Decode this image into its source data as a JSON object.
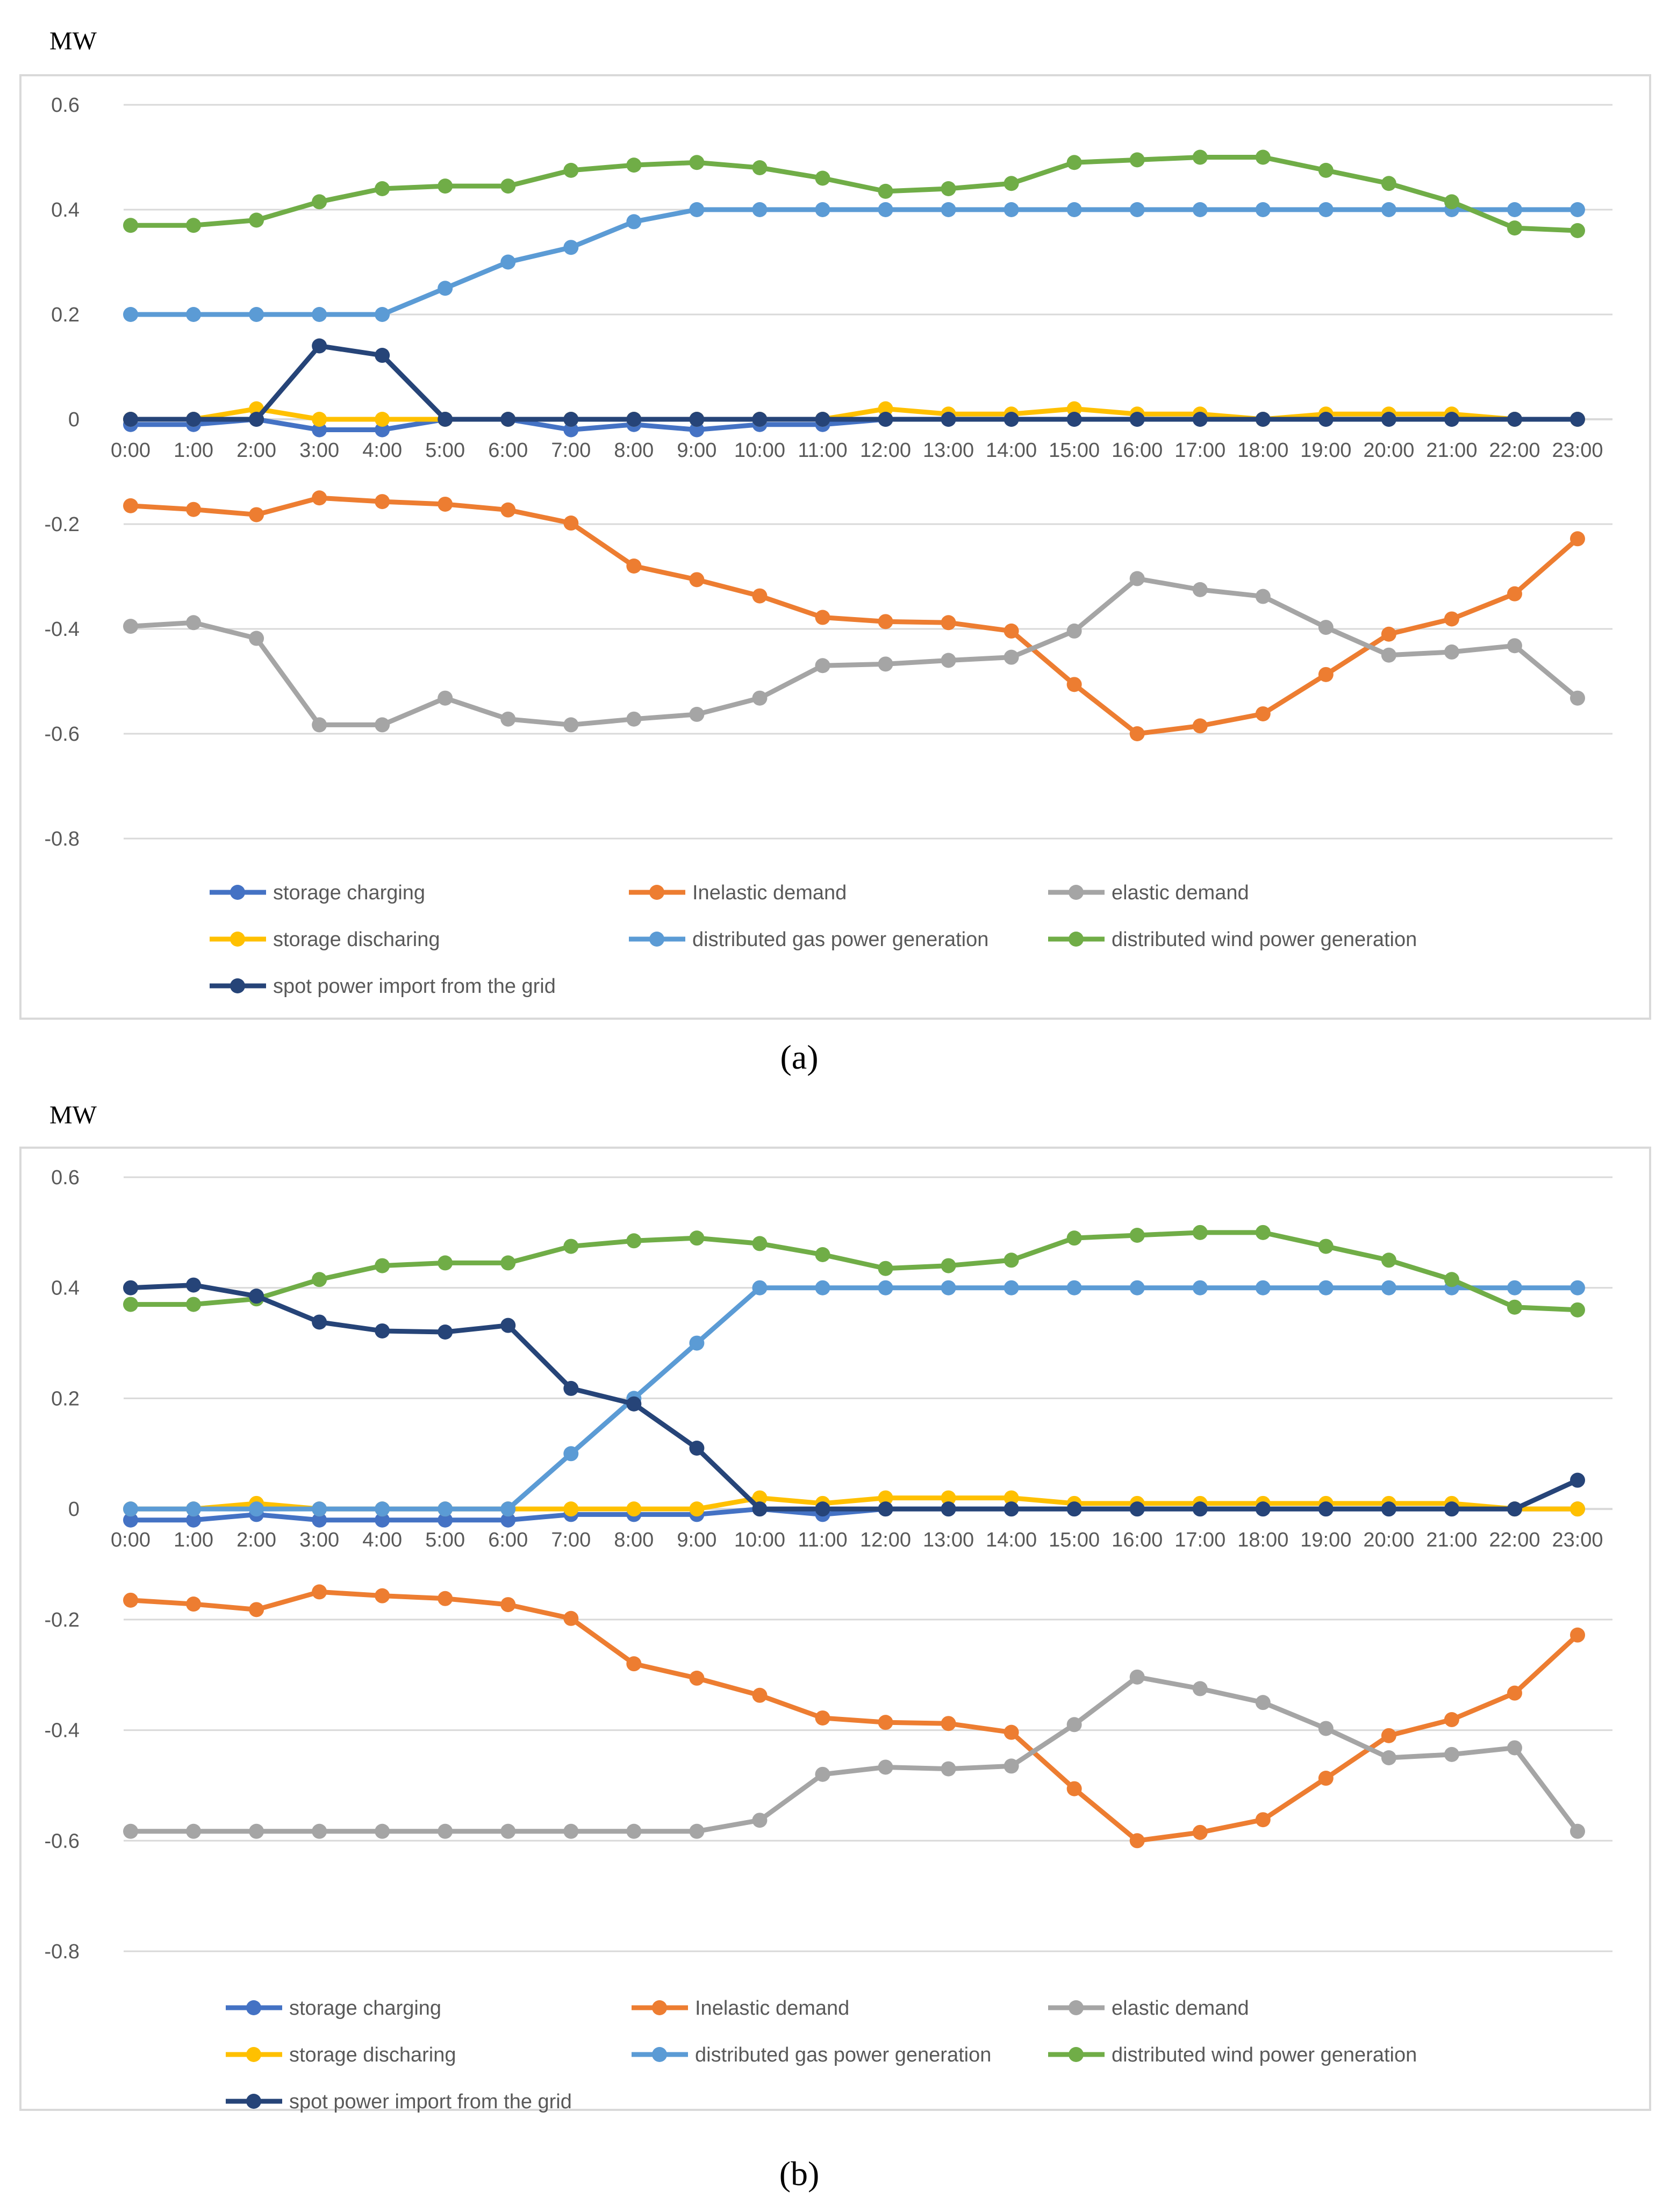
{
  "chart_data": [
    {
      "type": "line",
      "caption": "(a)",
      "ylabel": "MW",
      "ylim": [
        -0.8,
        0.6
      ],
      "yticks": [
        0.6,
        0.4,
        0.2,
        0,
        -0.2,
        -0.4,
        -0.6,
        -0.8
      ],
      "grid": true,
      "categories": [
        "0:00",
        "1:00",
        "2:00",
        "3:00",
        "4:00",
        "5:00",
        "6:00",
        "7:00",
        "8:00",
        "9:00",
        "10:00",
        "11:00",
        "12:00",
        "13:00",
        "14:00",
        "15:00",
        "16:00",
        "17:00",
        "18:00",
        "19:00",
        "20:00",
        "21:00",
        "22:00",
        "23:00"
      ],
      "series": [
        {
          "name": "storage charging",
          "color": "#4472C4",
          "values": [
            -0.01,
            -0.01,
            0,
            -0.02,
            -0.02,
            0,
            0,
            -0.02,
            -0.01,
            -0.02,
            -0.01,
            -0.01,
            0,
            0,
            0,
            0,
            0,
            0,
            0,
            0,
            0,
            0,
            0,
            0
          ]
        },
        {
          "name": "Inelastic demand",
          "color": "#ED7D31",
          "values": [
            -0.165,
            -0.172,
            -0.182,
            -0.15,
            -0.157,
            -0.162,
            -0.173,
            -0.198,
            -0.28,
            -0.306,
            -0.337,
            -0.378,
            -0.386,
            -0.388,
            -0.404,
            -0.506,
            -0.6,
            -0.585,
            -0.562,
            -0.487,
            -0.41,
            -0.381,
            -0.333,
            -0.228
          ]
        },
        {
          "name": "elastic demand",
          "color": "#A5A5A5",
          "values": [
            -0.395,
            -0.388,
            -0.418,
            -0.583,
            -0.583,
            -0.532,
            -0.572,
            -0.583,
            -0.572,
            -0.563,
            -0.532,
            -0.47,
            -0.467,
            -0.46,
            -0.454,
            -0.404,
            -0.304,
            -0.325,
            -0.338,
            -0.397,
            -0.45,
            -0.444,
            -0.432,
            -0.532
          ]
        },
        {
          "name": "storage discharing",
          "color": "#FFC000",
          "values": [
            0,
            0,
            0.02,
            0,
            0,
            0,
            0,
            0,
            0,
            0,
            0,
            0,
            0.02,
            0.01,
            0.01,
            0.02,
            0.01,
            0.01,
            0,
            0.01,
            0.01,
            0.01,
            0,
            0
          ]
        },
        {
          "name": "distributed gas power generation",
          "color": "#5B9BD5",
          "values": [
            0.2,
            0.2,
            0.2,
            0.2,
            0.2,
            0.25,
            0.3,
            0.328,
            0.377,
            0.4,
            0.4,
            0.4,
            0.4,
            0.4,
            0.4,
            0.4,
            0.4,
            0.4,
            0.4,
            0.4,
            0.4,
            0.4,
            0.4,
            0.4
          ]
        },
        {
          "name": "distributed wind power generation",
          "color": "#70AD47",
          "values": [
            0.37,
            0.37,
            0.38,
            0.415,
            0.44,
            0.445,
            0.445,
            0.475,
            0.485,
            0.49,
            0.48,
            0.46,
            0.435,
            0.44,
            0.45,
            0.49,
            0.495,
            0.5,
            0.5,
            0.475,
            0.45,
            0.415,
            0.365,
            0.36
          ]
        },
        {
          "name": "spot power import from the grid",
          "color": "#264478",
          "values": [
            0,
            0,
            0,
            0.14,
            0.122,
            0,
            0,
            0,
            0,
            0,
            0,
            0,
            0,
            0,
            0,
            0,
            0,
            0,
            0,
            0,
            0,
            0,
            0,
            0
          ]
        }
      ]
    },
    {
      "type": "line",
      "caption": "(b)",
      "ylabel": "MW",
      "ylim": [
        -0.8,
        0.6
      ],
      "yticks": [
        0.6,
        0.4,
        0.2,
        0,
        -0.2,
        -0.4,
        -0.6,
        -0.8
      ],
      "grid": true,
      "categories": [
        "0:00",
        "1:00",
        "2:00",
        "3:00",
        "4:00",
        "5:00",
        "6:00",
        "7:00",
        "8:00",
        "9:00",
        "10:00",
        "11:00",
        "12:00",
        "13:00",
        "14:00",
        "15:00",
        "16:00",
        "17:00",
        "18:00",
        "19:00",
        "20:00",
        "21:00",
        "22:00",
        "23:00"
      ],
      "series": [
        {
          "name": "storage charging",
          "color": "#4472C4",
          "values": [
            -0.02,
            -0.02,
            -0.01,
            -0.02,
            -0.02,
            -0.02,
            -0.02,
            -0.01,
            -0.01,
            -0.01,
            0,
            -0.01,
            0,
            0,
            0,
            0,
            0,
            0,
            0,
            0,
            0,
            0,
            0,
            0
          ]
        },
        {
          "name": "Inelastic demand",
          "color": "#ED7D31",
          "values": [
            -0.165,
            -0.172,
            -0.182,
            -0.15,
            -0.157,
            -0.162,
            -0.173,
            -0.198,
            -0.28,
            -0.306,
            -0.337,
            -0.378,
            -0.386,
            -0.388,
            -0.404,
            -0.506,
            -0.6,
            -0.585,
            -0.562,
            -0.487,
            -0.41,
            -0.381,
            -0.333,
            -0.228
          ]
        },
        {
          "name": "elastic demand",
          "color": "#A5A5A5",
          "values": [
            -0.583,
            -0.583,
            -0.583,
            -0.583,
            -0.583,
            -0.583,
            -0.583,
            -0.583,
            -0.583,
            -0.583,
            -0.563,
            -0.48,
            -0.467,
            -0.47,
            -0.465,
            -0.39,
            -0.304,
            -0.325,
            -0.35,
            -0.397,
            -0.45,
            -0.444,
            -0.432,
            -0.583
          ]
        },
        {
          "name": "storage discharing",
          "color": "#FFC000",
          "values": [
            0,
            0,
            0.01,
            0,
            0,
            0,
            0,
            0,
            0,
            0,
            0.02,
            0.01,
            0.02,
            0.02,
            0.02,
            0.01,
            0.01,
            0.01,
            0.01,
            0.01,
            0.01,
            0.01,
            0,
            0
          ]
        },
        {
          "name": "distributed gas power generation",
          "color": "#5B9BD5",
          "values": [
            0,
            0,
            0,
            0,
            0,
            0,
            0,
            0.1,
            0.2,
            0.3,
            0.4,
            0.4,
            0.4,
            0.4,
            0.4,
            0.4,
            0.4,
            0.4,
            0.4,
            0.4,
            0.4,
            0.4,
            0.4,
            0.4
          ]
        },
        {
          "name": "distributed wind power generation",
          "color": "#70AD47",
          "values": [
            0.37,
            0.37,
            0.38,
            0.415,
            0.44,
            0.445,
            0.445,
            0.475,
            0.485,
            0.49,
            0.48,
            0.46,
            0.435,
            0.44,
            0.45,
            0.49,
            0.495,
            0.5,
            0.5,
            0.475,
            0.45,
            0.415,
            0.365,
            0.36
          ]
        },
        {
          "name": "spot power import from the grid",
          "color": "#264478",
          "values": [
            0.4,
            0.405,
            0.385,
            0.338,
            0.322,
            0.32,
            0.332,
            0.218,
            0.19,
            0.11,
            0,
            0,
            0,
            0,
            0,
            0,
            0,
            0,
            0,
            0,
            0,
            0,
            0,
            0.052
          ]
        }
      ]
    }
  ]
}
